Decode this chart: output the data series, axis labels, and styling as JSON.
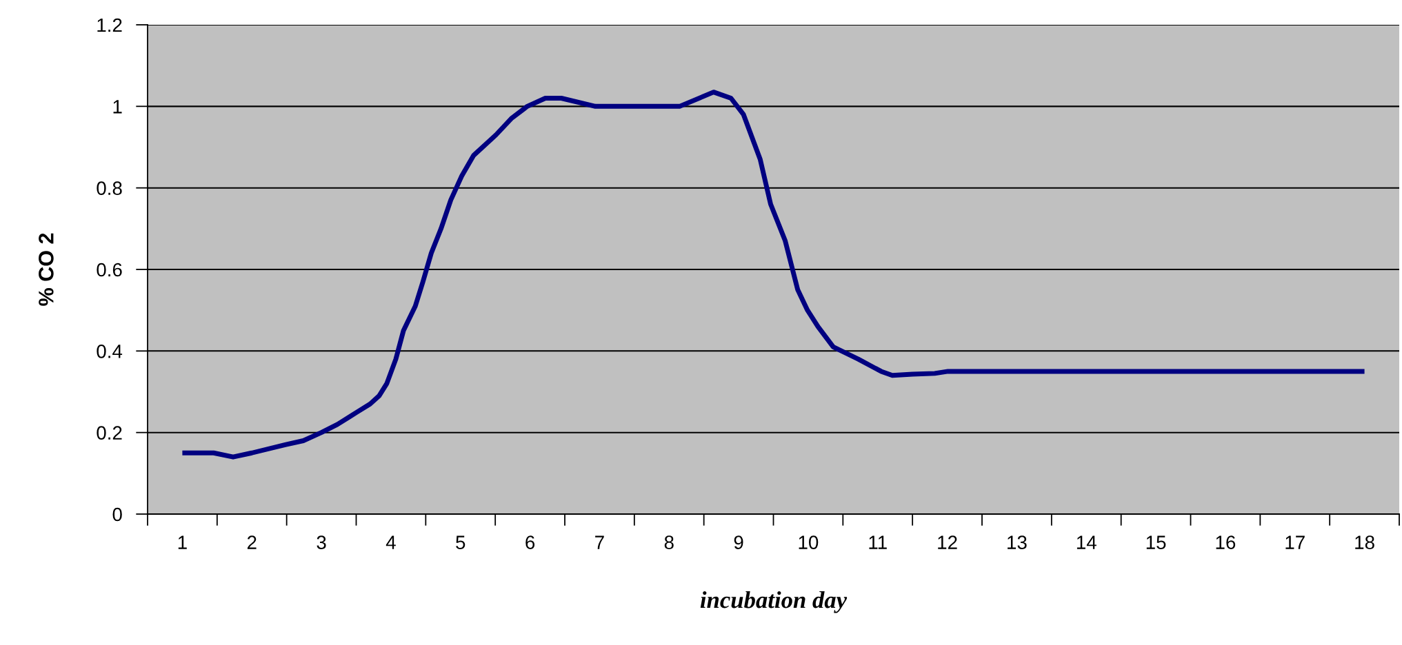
{
  "chart_data": {
    "type": "line",
    "xlabel": "incubation day",
    "ylabel": "% CO 2",
    "xlim": [
      0.5,
      18.5
    ],
    "xticks": [
      1,
      2,
      3,
      4,
      5,
      6,
      7,
      8,
      9,
      10,
      11,
      12,
      13,
      14,
      15,
      16,
      17,
      18
    ],
    "ylim": [
      0,
      1.2
    ],
    "yticks": [
      0,
      0.2,
      0.4,
      0.6,
      0.8,
      1,
      1.2
    ],
    "grid": "y",
    "marker": "none",
    "line_style": "solid",
    "series": [
      {
        "color": "#000080",
        "x": [
          1.0,
          1.45,
          1.73,
          2.0,
          2.48,
          2.74,
          3.0,
          3.23,
          3.51,
          3.7,
          3.83,
          3.94,
          4.07,
          4.18,
          4.35,
          4.46,
          4.58,
          4.72,
          4.86,
          5.02,
          5.19,
          5.51,
          5.73,
          5.96,
          6.22,
          6.45,
          6.94,
          8.15,
          8.64,
          8.89,
          9.07,
          9.31,
          9.46,
          9.67,
          9.85,
          9.99,
          10.14,
          10.36,
          10.72,
          11.05,
          11.21,
          11.5,
          11.82,
          12.01,
          18.0
        ],
        "values": [
          0.15,
          0.15,
          0.14,
          0.15,
          0.17,
          0.18,
          0.2,
          0.22,
          0.25,
          0.27,
          0.29,
          0.32,
          0.38,
          0.45,
          0.51,
          0.57,
          0.64,
          0.7,
          0.77,
          0.83,
          0.88,
          0.93,
          0.97,
          1.0,
          1.02,
          1.02,
          1.0,
          1.0,
          1.035,
          1.02,
          0.98,
          0.87,
          0.76,
          0.67,
          0.55,
          0.5,
          0.46,
          0.41,
          0.38,
          0.35,
          0.34,
          0.343,
          0.345,
          0.35,
          0.35
        ]
      }
    ]
  }
}
